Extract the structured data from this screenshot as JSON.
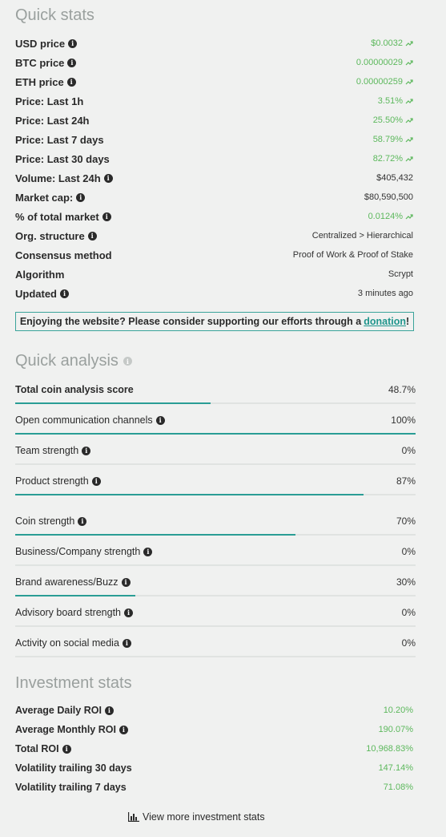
{
  "quick_stats": {
    "title": "Quick stats",
    "rows": [
      {
        "label": "USD price",
        "value": "$0.0032",
        "info": true,
        "green": true,
        "trend": true
      },
      {
        "label": "BTC price",
        "value": "0.00000029",
        "info": true,
        "green": true,
        "trend": true
      },
      {
        "label": "ETH price",
        "value": "0.00000259",
        "info": true,
        "green": true,
        "trend": true
      },
      {
        "label": "Price: Last 1h",
        "value": "3.51%",
        "info": false,
        "green": true,
        "trend": true
      },
      {
        "label": "Price: Last 24h",
        "value": "25.50%",
        "info": false,
        "green": true,
        "trend": true
      },
      {
        "label": "Price: Last 7 days",
        "value": "58.79%",
        "info": false,
        "green": true,
        "trend": true
      },
      {
        "label": "Price: Last 30 days",
        "value": "82.72%",
        "info": false,
        "green": true,
        "trend": true
      },
      {
        "label": "Volume: Last 24h",
        "value": "$405,432",
        "info": true,
        "green": false,
        "trend": false
      },
      {
        "label": "Market cap:",
        "value": "$80,590,500",
        "info": true,
        "green": false,
        "trend": false
      },
      {
        "label": "% of total market",
        "value": "0.0124%",
        "info": true,
        "green": true,
        "trend": true
      },
      {
        "label": "Org. structure",
        "value": "Centralized > Hierarchical",
        "info": true,
        "green": false,
        "trend": false
      },
      {
        "label": "Consensus method",
        "value": "Proof of Work & Proof of Stake",
        "info": false,
        "green": false,
        "trend": false
      },
      {
        "label": "Algorithm",
        "value": "Scrypt",
        "info": false,
        "green": false,
        "trend": false
      },
      {
        "label": "Updated",
        "value": "3 minutes ago",
        "info": true,
        "green": false,
        "trend": false
      }
    ]
  },
  "banner": {
    "text": "Enjoying the website? Please consider supporting our efforts through a",
    "link": "donation",
    "suffix": "!"
  },
  "quick_analysis": {
    "title": "Quick analysis",
    "rows": [
      {
        "label": "Total coin analysis score",
        "value": "48.7%",
        "fraction": 0.487,
        "info": false,
        "bold": true
      },
      {
        "label": "Open communication channels",
        "value": "100%",
        "fraction": 1.0,
        "info": true,
        "bold": false
      },
      {
        "label": "Team strength",
        "value": "0%",
        "fraction": 0,
        "info": true,
        "bold": false
      },
      {
        "label": "Product strength",
        "value": "87%",
        "fraction": 0.87,
        "info": true,
        "bold": false
      },
      {
        "label": "Coin strength",
        "value": "70%",
        "fraction": 0.7,
        "info": true,
        "bold": false
      },
      {
        "label": "Business/Company strength",
        "value": "0%",
        "fraction": 0,
        "info": true,
        "bold": false
      },
      {
        "label": "Brand awareness/Buzz",
        "value": "30%",
        "fraction": 0.3,
        "info": true,
        "bold": false
      },
      {
        "label": "Advisory board strength",
        "value": "0%",
        "fraction": 0,
        "info": true,
        "bold": false
      },
      {
        "label": "Activity on social media",
        "value": "0%",
        "fraction": 0,
        "info": true,
        "bold": false
      }
    ]
  },
  "investment_stats": {
    "title": "Investment stats",
    "rows": [
      {
        "label": "Average Daily ROI",
        "value": "10.20%",
        "info": true
      },
      {
        "label": "Average Monthly ROI",
        "value": "190.07%",
        "info": true
      },
      {
        "label": "Total ROI",
        "value": "10,968.83%",
        "info": true
      },
      {
        "label": "Volatility trailing 30 days",
        "value": "147.14%",
        "info": false
      },
      {
        "label": "Volatility trailing 7 days",
        "value": "71.08%",
        "info": false
      }
    ],
    "view_more": "View more investment stats"
  },
  "colors": {
    "accent": "#2a9d95",
    "positive": "#5cb85c",
    "heading": "#9aa09e"
  }
}
